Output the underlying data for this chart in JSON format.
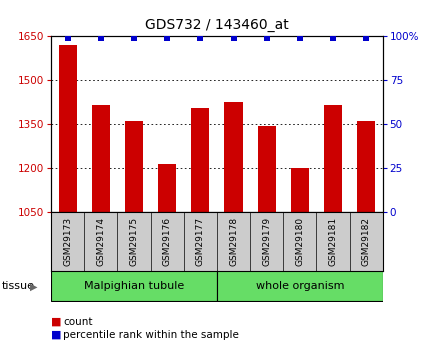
{
  "title": "GDS732 / 143460_at",
  "samples": [
    "GSM29173",
    "GSM29174",
    "GSM29175",
    "GSM29176",
    "GSM29177",
    "GSM29178",
    "GSM29179",
    "GSM29180",
    "GSM29181",
    "GSM29182"
  ],
  "counts": [
    1620,
    1415,
    1360,
    1215,
    1405,
    1425,
    1345,
    1200,
    1415,
    1360
  ],
  "percentile_ranks": [
    99,
    99,
    99,
    99,
    99,
    99,
    99,
    99,
    99,
    99
  ],
  "ylim_left": [
    1050,
    1650
  ],
  "ylim_right": [
    0,
    100
  ],
  "yticks_left": [
    1050,
    1200,
    1350,
    1500,
    1650
  ],
  "yticks_right": [
    0,
    25,
    50,
    75,
    100
  ],
  "ytick_labels_right": [
    "0",
    "25",
    "50",
    "75",
    "100%"
  ],
  "bar_color": "#cc0000",
  "dot_color": "#0000cc",
  "tissue_groups": [
    {
      "label": "Malpighian tubule",
      "n": 5,
      "color": "#66dd66"
    },
    {
      "label": "whole organism",
      "n": 5,
      "color": "#66dd66"
    }
  ],
  "tissue_label": "tissue",
  "legend_count_label": "count",
  "legend_pct_label": "percentile rank within the sample",
  "background_color": "#ffffff",
  "bar_color_rgb": "#cc0000",
  "dot_color_rgb": "#0000cc",
  "tick_label_color_left": "#cc0000",
  "tick_label_color_right": "#0000cc",
  "xticklabel_bgcolor": "#cccccc",
  "bar_width": 0.55
}
